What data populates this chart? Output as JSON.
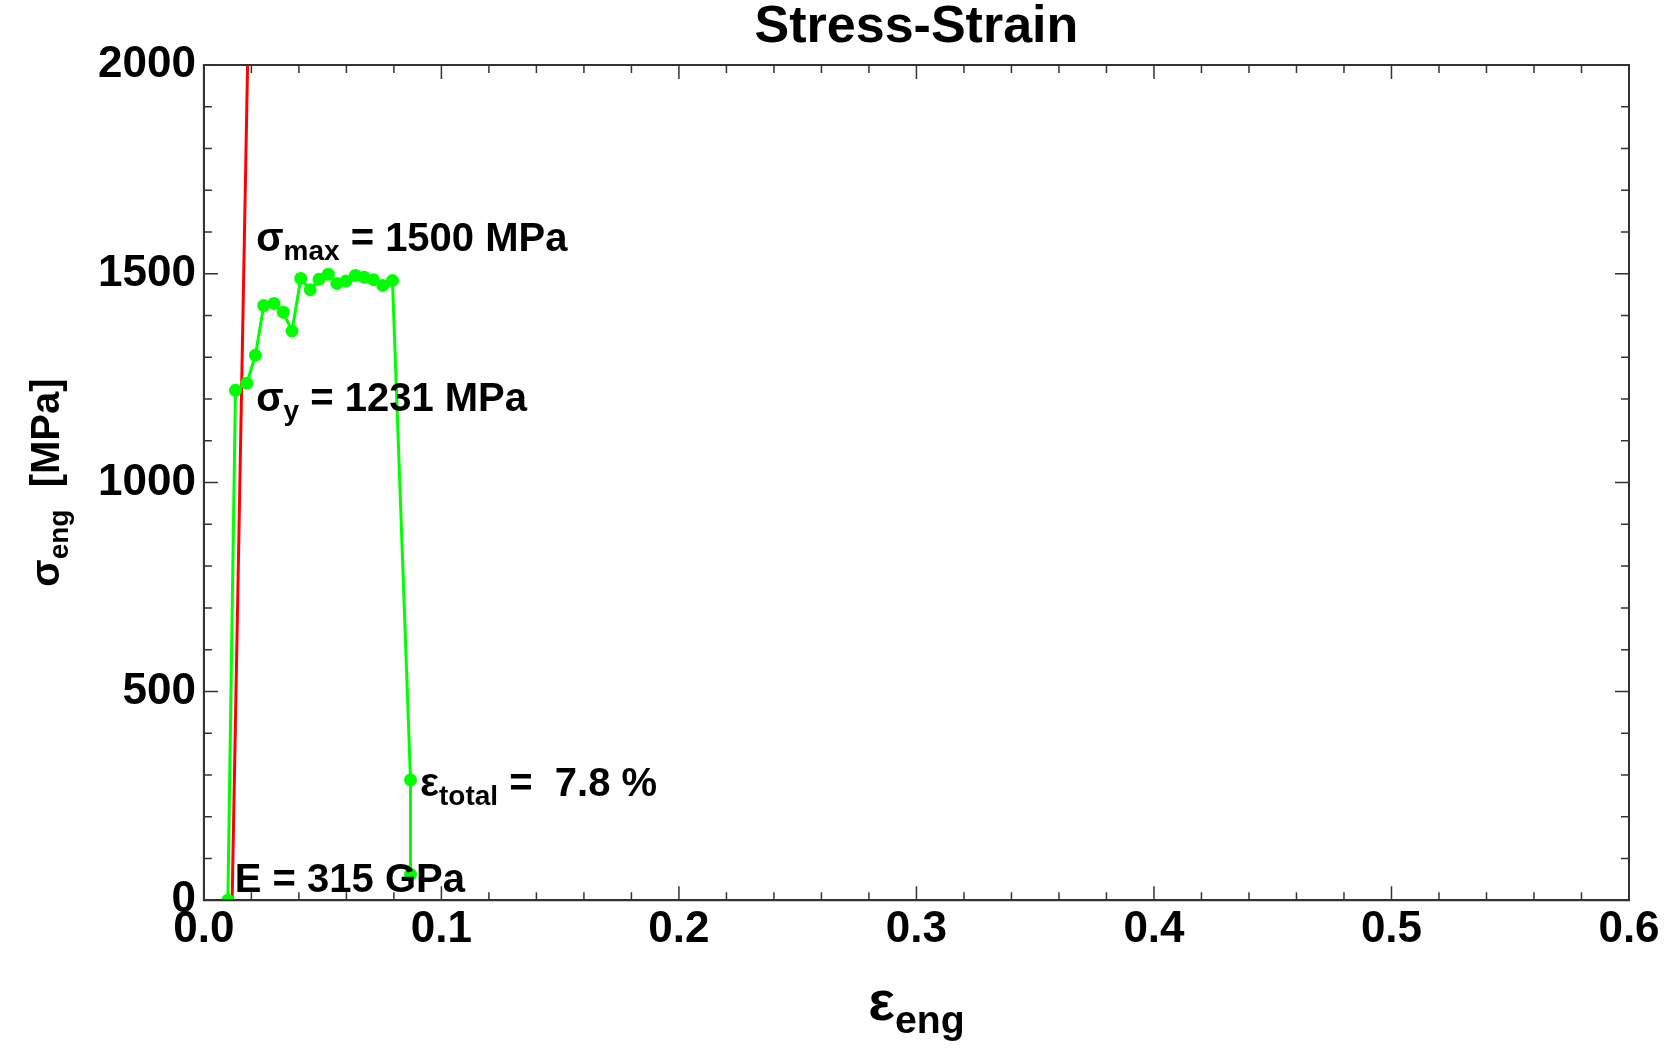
{
  "chart_data": {
    "type": "line",
    "title": "Stress-Strain",
    "xlabel": "ε$_{eng}$",
    "ylabel": "σ$_{eng}$  [MPa]",
    "series": [
      {
        "type": "line",
        "color": "#00ff00",
        "marker": "circle",
        "line_style": "solid",
        "x": [
          0.0101,
          0.0133,
          0.0181,
          0.0217,
          0.0252,
          0.0295,
          0.0334,
          0.0371,
          0.0408,
          0.0448,
          0.0485,
          0.0524,
          0.056,
          0.0599,
          0.0638,
          0.0675,
          0.0714,
          0.0753,
          0.0794,
          0.087,
          0.087
        ],
        "values": [
          0,
          1221,
          1238,
          1305,
          1424,
          1429,
          1408,
          1363,
          1489,
          1462,
          1487,
          1499,
          1477,
          1483,
          1496,
          1492,
          1486,
          1472,
          1484,
          288,
          62
        ]
      },
      {
        "type": "line",
        "color": "#ff0000",
        "marker": "none",
        "line_style": "solid",
        "x": [
          0.0119,
          0.0184
        ],
        "values": [
          0,
          2000
        ]
      }
    ],
    "xlim": [
      0,
      0.6
    ],
    "xticks": [
      {
        "value": 0,
        "label": "0.0"
      },
      {
        "value": 0.02,
        "label": null
      },
      {
        "value": 0.04,
        "label": null
      },
      {
        "value": 0.06,
        "label": null
      },
      {
        "value": 0.08,
        "label": null
      },
      {
        "value": 0.1,
        "label": "0.1"
      },
      {
        "value": 0.12,
        "label": null
      },
      {
        "value": 0.14,
        "label": null
      },
      {
        "value": 0.16,
        "label": null
      },
      {
        "value": 0.18,
        "label": null
      },
      {
        "value": 0.2,
        "label": "0.2"
      },
      {
        "value": 0.22,
        "label": null
      },
      {
        "value": 0.24,
        "label": null
      },
      {
        "value": 0.26,
        "label": null
      },
      {
        "value": 0.28,
        "label": null
      },
      {
        "value": 0.3,
        "label": "0.3"
      },
      {
        "value": 0.32,
        "label": null
      },
      {
        "value": 0.34,
        "label": null
      },
      {
        "value": 0.36,
        "label": null
      },
      {
        "value": 0.38,
        "label": null
      },
      {
        "value": 0.4,
        "label": "0.4"
      },
      {
        "value": 0.42,
        "label": null
      },
      {
        "value": 0.44,
        "label": null
      },
      {
        "value": 0.46,
        "label": null
      },
      {
        "value": 0.48,
        "label": null
      },
      {
        "value": 0.5,
        "label": "0.5"
      },
      {
        "value": 0.52,
        "label": null
      },
      {
        "value": 0.54,
        "label": null
      },
      {
        "value": 0.56,
        "label": null
      },
      {
        "value": 0.58,
        "label": null
      },
      {
        "value": 0.6,
        "label": "0.6"
      }
    ],
    "ylim": [
      0,
      2000
    ],
    "yticks": [
      0,
      {
        "value": 100,
        "label": null
      },
      {
        "value": 200,
        "label": null
      },
      {
        "value": 300,
        "label": null
      },
      {
        "value": 400,
        "label": null
      },
      500,
      {
        "value": 600,
        "label": null
      },
      {
        "value": 700,
        "label": null
      },
      {
        "value": 800,
        "label": null
      },
      {
        "value": 900,
        "label": null
      },
      1000,
      {
        "value": 1100,
        "label": null
      },
      {
        "value": 1200,
        "label": null
      },
      {
        "value": 1300,
        "label": null
      },
      {
        "value": 1400,
        "label": null
      },
      1500,
      {
        "value": 1600,
        "label": null
      },
      {
        "value": 1700,
        "label": null
      },
      {
        "value": 1800,
        "label": null
      },
      {
        "value": 1900,
        "label": null
      },
      2000
    ],
    "grid": false,
    "legend": false,
    "annotations": [
      "σ$_{max}$ = 1500 MPa",
      "σ$_{y}$ = 1231 MPa",
      "ε$_{total}$ =  7.8 %",
      "E = 315 GPa"
    ]
  }
}
